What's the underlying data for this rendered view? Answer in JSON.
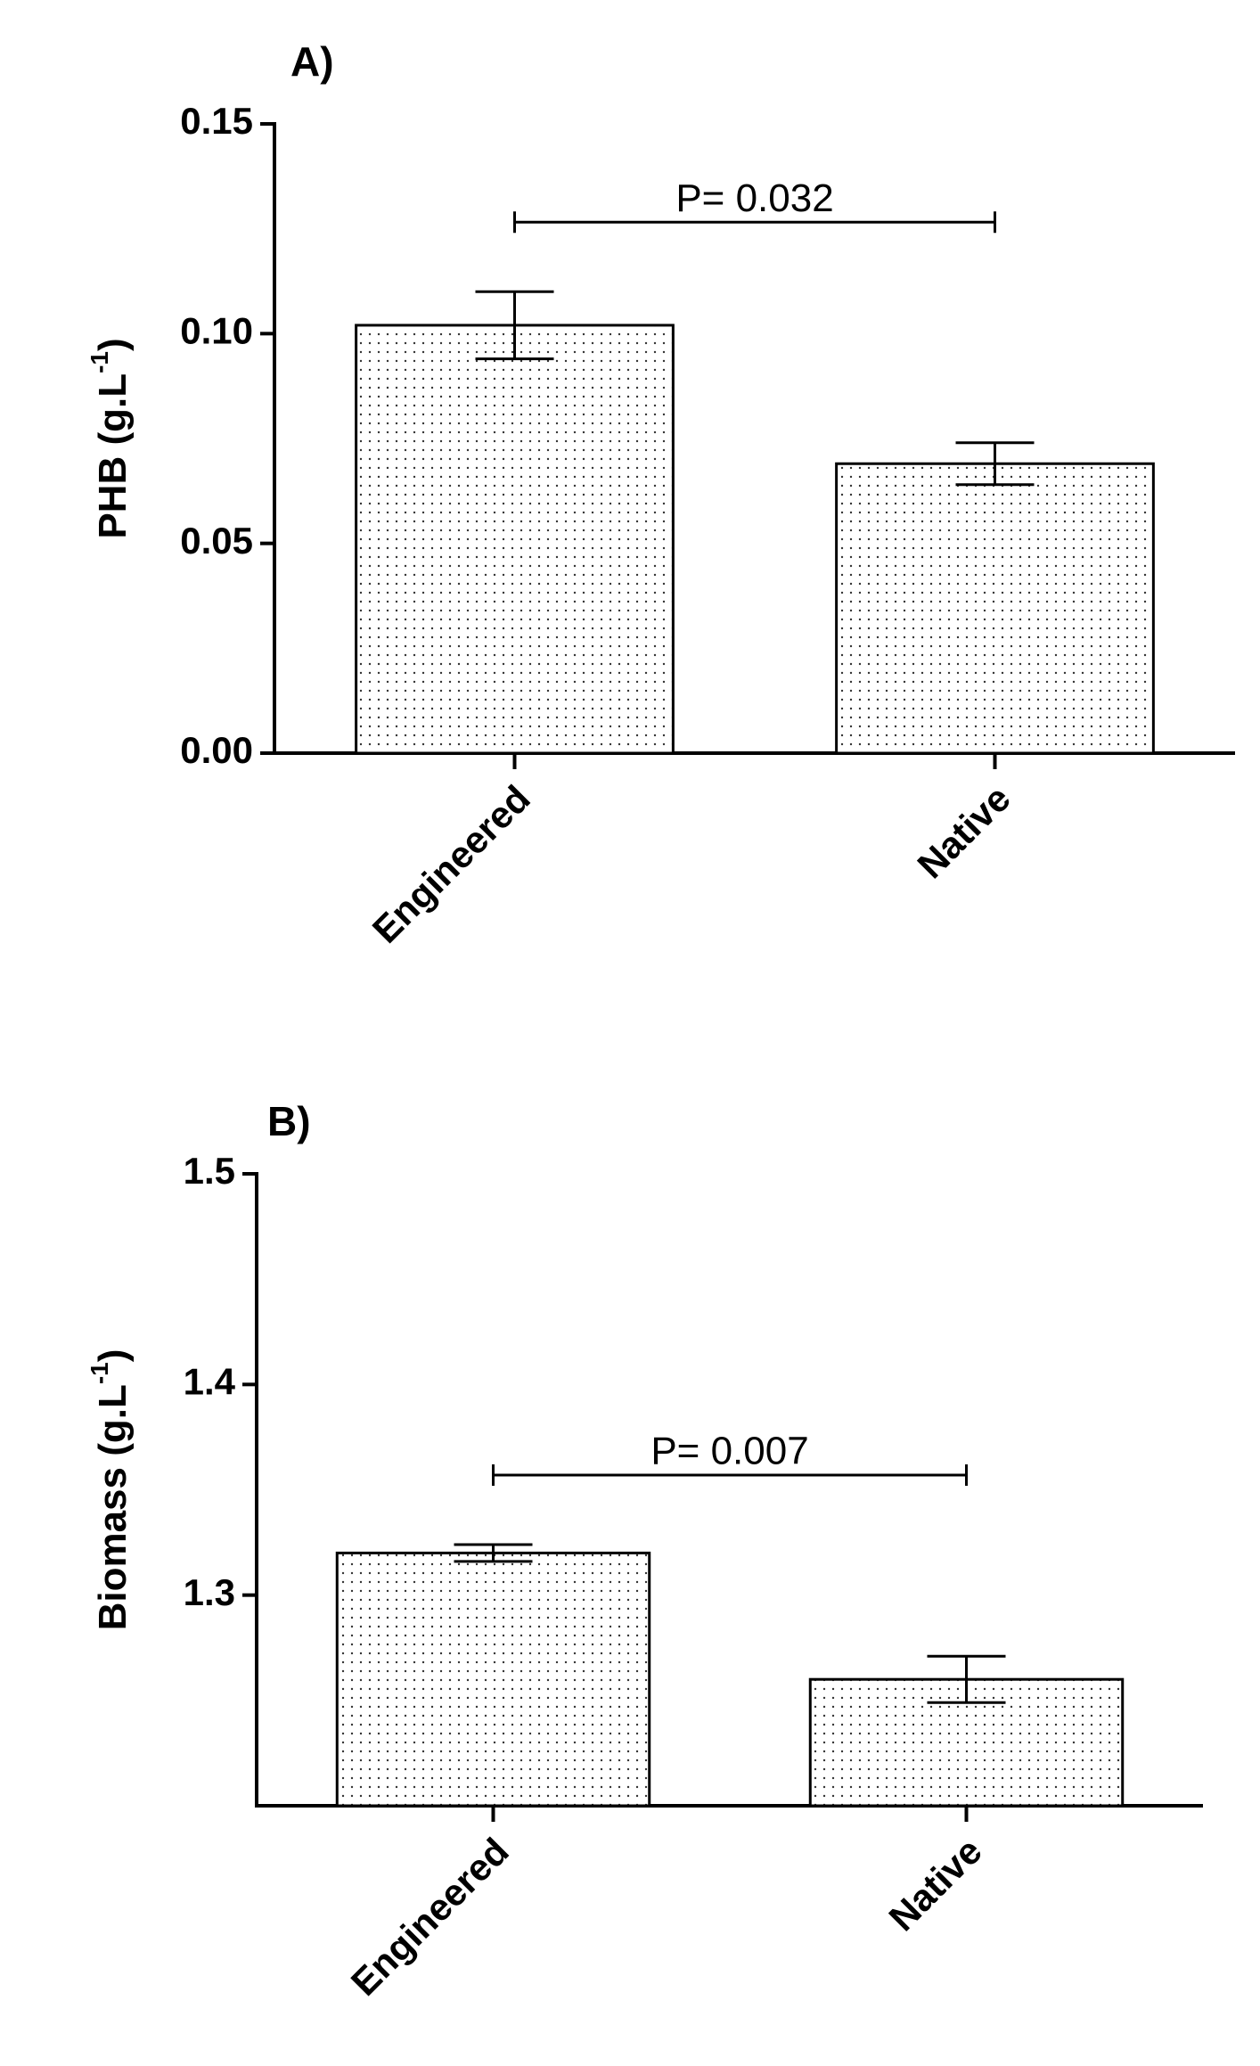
{
  "chart_data": [
    {
      "type": "bar",
      "panel": "A)",
      "ylabel": [
        "PHB (g.L",
        "-1",
        ")"
      ],
      "categories": [
        "Engineered",
        "Native"
      ],
      "values": [
        0.102,
        0.069
      ],
      "errors": [
        0.008,
        0.005
      ],
      "ylim": [
        0,
        0.15
      ],
      "yticks": [
        {
          "value": 0,
          "label": "0.00"
        },
        0.05,
        {
          "value": 0.1,
          "label": "0.10"
        },
        0.15
      ],
      "annotation": "P= 0.032",
      "color": "#ffffff"
    },
    {
      "type": "bar",
      "panel": "B)",
      "ylabel": [
        "Biomass (g.L",
        "-1",
        ")"
      ],
      "categories": [
        "Engineered",
        "Native"
      ],
      "values": [
        1.32,
        1.26
      ],
      "errors": [
        0.004,
        0.011
      ],
      "ylim": [
        1.2,
        1.5
      ],
      "yticks": [
        1.3,
        1.4,
        1.5
      ],
      "annotation": "P= 0.007",
      "color": "#ffffff"
    }
  ]
}
